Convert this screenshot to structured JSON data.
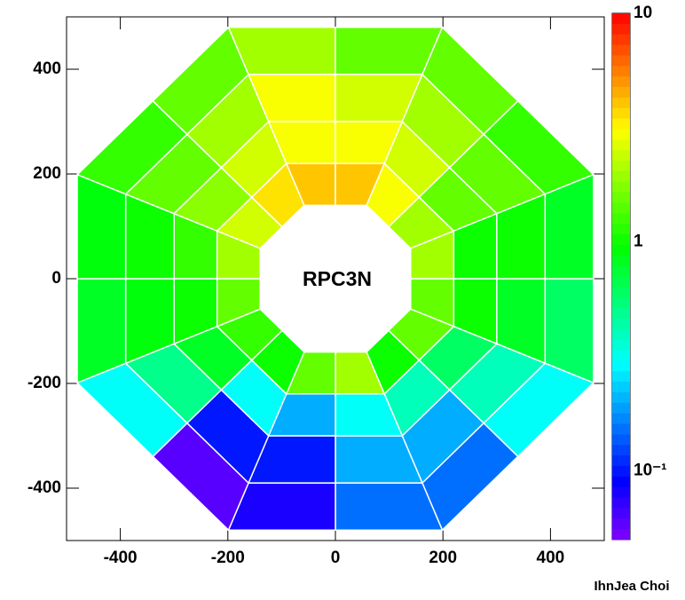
{
  "chart_data": {
    "type": "polar-heatmap",
    "annotation": "RPC3N",
    "credit": "IhnJea Choi",
    "xlim": [
      -500,
      500
    ],
    "ylim": [
      -500,
      500
    ],
    "xticks": [
      -400,
      -200,
      0,
      200,
      400
    ],
    "yticks": [
      -400,
      -200,
      0,
      200,
      400
    ],
    "zlim": [
      0.05,
      10
    ],
    "zticks": [
      10,
      1,
      {
        "value": 0.1,
        "label": "10⁻¹"
      }
    ],
    "zscale": "log",
    "angles": [
      0,
      22.5,
      45,
      67.5,
      90,
      112.5,
      135,
      157.5,
      180,
      202.5,
      225,
      247.5,
      270,
      292.5,
      315,
      337.5,
      360
    ],
    "radii": [
      140,
      220,
      300,
      390,
      480
    ],
    "values": [
      [
        2,
        1,
        1,
        0.8
      ],
      [
        2,
        1.5,
        1.5,
        1.2
      ],
      [
        3,
        2.5,
        2,
        1.5
      ],
      [
        4,
        3,
        2.5,
        1.5
      ],
      [
        4,
        3,
        3,
        2
      ],
      [
        3.5,
        2.5,
        2,
        1.5
      ],
      [
        2.5,
        1.8,
        1.5,
        1.2
      ],
      [
        2,
        1.2,
        1,
        0.9
      ],
      [
        1.5,
        1,
        0.9,
        0.8
      ],
      [
        1.2,
        0.8,
        0.5,
        0.3
      ],
      [
        1,
        0.3,
        0.1,
        0.06
      ],
      [
        1.5,
        0.2,
        0.1,
        0.08
      ],
      [
        2,
        0.3,
        0.2,
        0.15
      ],
      [
        1,
        0.4,
        0.2,
        0.15
      ],
      [
        1.5,
        0.6,
        0.4,
        0.3
      ],
      [
        1.5,
        1,
        0.8,
        0.6
      ]
    ]
  }
}
